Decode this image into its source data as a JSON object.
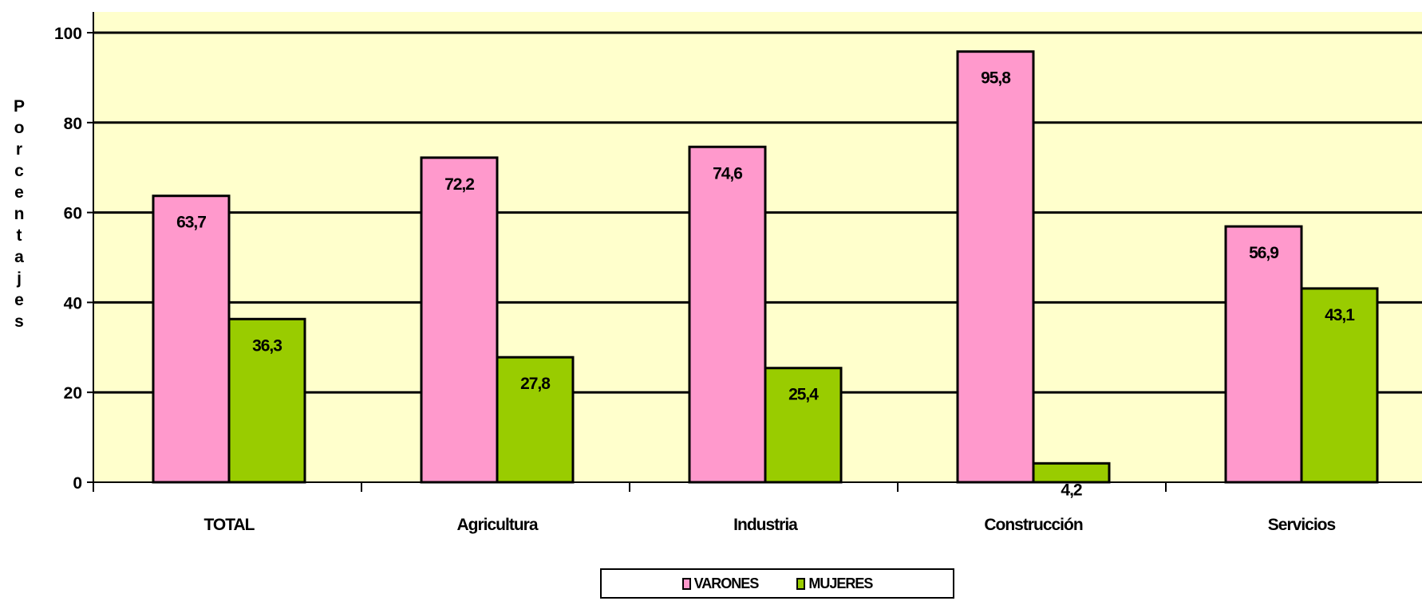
{
  "chart_data": {
    "type": "bar",
    "title": "",
    "xlabel": "",
    "ylabel": "Porcentajes",
    "categories": [
      "TOTAL",
      "Agricultura",
      "Industria",
      "Construcción",
      "Servicios"
    ],
    "series": [
      {
        "name": "VARONES",
        "color": "#ff99cc",
        "values": [
          63.7,
          72.2,
          74.6,
          95.8,
          56.9
        ],
        "labels": [
          "63,7",
          "72,2",
          "74,6",
          "95,8",
          "56,9"
        ]
      },
      {
        "name": "MUJERES",
        "color": "#99cc00",
        "values": [
          36.3,
          27.8,
          25.4,
          4.2,
          43.1
        ],
        "labels": [
          "36,3",
          "27,8",
          "25,4",
          "4,2",
          "43,1"
        ]
      }
    ],
    "ylim": [
      0,
      100
    ],
    "yticks": [
      0,
      20,
      40,
      60,
      80,
      100
    ],
    "grid": true,
    "plot_background": "#ffffcc",
    "legend_position": "bottom"
  }
}
